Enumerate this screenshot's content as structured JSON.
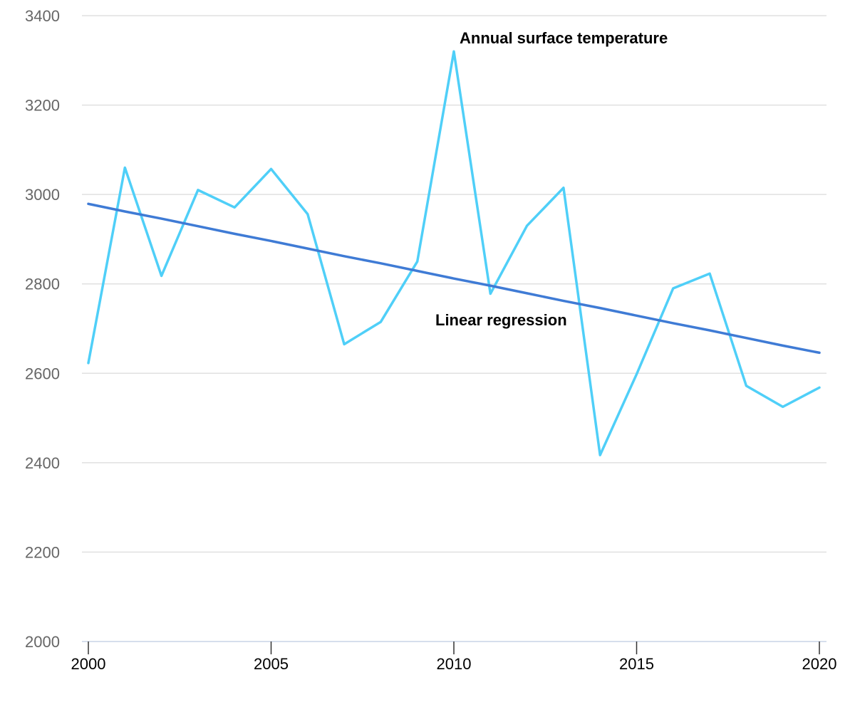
{
  "chart_data": {
    "type": "line",
    "x": [
      2000,
      2001,
      2002,
      2003,
      2004,
      2005,
      2006,
      2007,
      2008,
      2009,
      2010,
      2011,
      2012,
      2013,
      2014,
      2015,
      2016,
      2017,
      2018,
      2019,
      2020
    ],
    "series": [
      {
        "name": "Annual surface temperature",
        "color": "#4fcff8",
        "values": [
          2623,
          3060,
          2818,
          3010,
          2971,
          3057,
          2956,
          2665,
          2715,
          2850,
          3320,
          2778,
          2930,
          3015,
          2417,
          2598,
          2790,
          2823,
          2572,
          2525,
          2568
        ]
      },
      {
        "name": "Linear regression",
        "color": "#3f7bd5",
        "values": [
          2979,
          2962,
          2946,
          2929,
          2912,
          2896,
          2879,
          2862,
          2846,
          2829,
          2812,
          2796,
          2779,
          2762,
          2746,
          2729,
          2712,
          2696,
          2679,
          2662,
          2646
        ]
      }
    ],
    "annotations": [
      "Annual surface temperature",
      "Linear regression"
    ],
    "ylim": [
      2000,
      3400
    ],
    "yticks": [
      2000,
      2200,
      2400,
      2600,
      2800,
      3000,
      3200,
      3400
    ],
    "xticks": [
      2000,
      2005,
      2010,
      2015,
      2020
    ],
    "grid": true,
    "title": "",
    "xlabel": "",
    "ylabel": ""
  }
}
